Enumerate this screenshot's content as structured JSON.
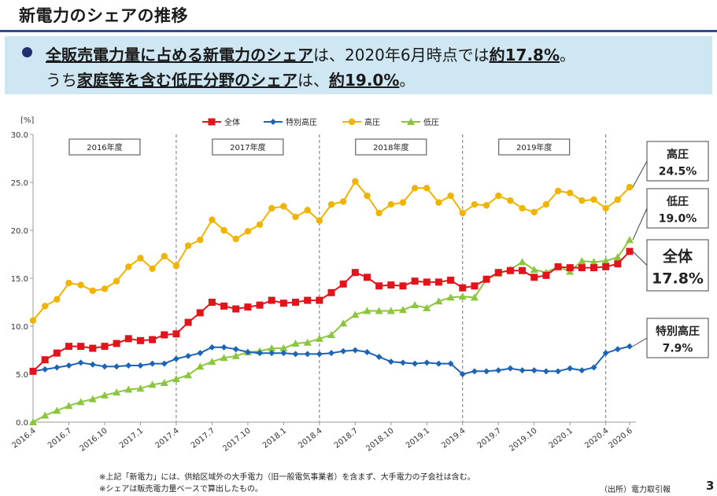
{
  "header": {
    "title": "新電力のシェアの推移"
  },
  "summary": {
    "line1": {
      "highlight": "全販売電力量に占める新電力のシェア",
      "middle": "は、2020年6月時点では",
      "value": "約17.8%",
      "end": "。"
    },
    "line2": {
      "start": "うち",
      "highlight": "家庭等を含む低圧分野のシェア",
      "middle": "は、",
      "value": "約19.0%",
      "end": "。"
    }
  },
  "chart_data": {
    "type": "line",
    "unit_label": "[%]",
    "ylim": [
      0,
      30
    ],
    "yticks": [
      "0.0",
      "5.0",
      "10.0",
      "15.0",
      "20.0",
      "25.0",
      "30.0"
    ],
    "xticks": [
      "2016.4",
      "2016.7",
      "2016.10",
      "2017.1",
      "2017.4",
      "2017.7",
      "2017.10",
      "2018.1",
      "2018.4",
      "2018.7",
      "2018.10",
      "2019.1",
      "2019.4",
      "2019.7",
      "2019.10",
      "2020.1",
      "2020.4",
      "2020.6"
    ],
    "x": [
      "2016.4",
      "2016.5",
      "2016.6",
      "2016.7",
      "2016.8",
      "2016.9",
      "2016.10",
      "2016.11",
      "2016.12",
      "2017.1",
      "2017.2",
      "2017.3",
      "2017.4",
      "2017.5",
      "2017.6",
      "2017.7",
      "2017.8",
      "2017.9",
      "2017.10",
      "2017.11",
      "2017.12",
      "2018.1",
      "2018.2",
      "2018.3",
      "2018.4",
      "2018.5",
      "2018.6",
      "2018.7",
      "2018.8",
      "2018.9",
      "2018.10",
      "2018.11",
      "2018.12",
      "2019.1",
      "2019.2",
      "2019.3",
      "2019.4",
      "2019.5",
      "2019.6",
      "2019.7",
      "2019.8",
      "2019.9",
      "2019.10",
      "2019.11",
      "2019.12",
      "2020.1",
      "2020.2",
      "2020.3",
      "2020.4",
      "2020.5",
      "2020.6"
    ],
    "fiscal_years": [
      "2016年度",
      "2017年度",
      "2018年度",
      "2019年度"
    ],
    "grid": "vertical dashed lines at fiscal-year boundaries",
    "legend_position": "top",
    "series": [
      {
        "name": "全体",
        "color": "#e3131b",
        "marker": "square",
        "values": [
          5.3,
          6.5,
          7.2,
          7.9,
          7.9,
          7.7,
          7.9,
          8.2,
          8.7,
          8.5,
          8.6,
          9.1,
          9.2,
          10.4,
          11.4,
          12.5,
          12.1,
          11.8,
          12.0,
          12.2,
          12.7,
          12.4,
          12.5,
          12.7,
          12.7,
          13.5,
          14.4,
          15.6,
          15.1,
          14.2,
          14.3,
          14.2,
          14.7,
          14.6,
          14.6,
          14.8,
          14.0,
          14.2,
          14.9,
          15.6,
          15.8,
          15.8,
          15.1,
          15.3,
          16.2,
          16.1,
          16.1,
          16.1,
          16.2,
          16.5,
          17.8
        ]
      },
      {
        "name": "特別高圧",
        "color": "#1e64b4",
        "marker": "diamond",
        "values": [
          5.3,
          5.5,
          5.7,
          5.9,
          6.2,
          6.0,
          5.8,
          5.8,
          5.9,
          5.9,
          6.1,
          6.1,
          6.6,
          6.9,
          7.2,
          7.8,
          7.8,
          7.6,
          7.3,
          7.2,
          7.2,
          7.2,
          7.1,
          7.1,
          7.1,
          7.2,
          7.4,
          7.5,
          7.3,
          6.8,
          6.3,
          6.2,
          6.1,
          6.2,
          6.1,
          6.1,
          5.0,
          5.3,
          5.3,
          5.4,
          5.6,
          5.4,
          5.4,
          5.3,
          5.3,
          5.6,
          5.4,
          5.7,
          7.2,
          7.6,
          7.9
        ]
      },
      {
        "name": "高圧",
        "color": "#f0b400",
        "marker": "circle",
        "values": [
          10.6,
          12.1,
          12.8,
          14.5,
          14.3,
          13.7,
          13.9,
          14.7,
          16.2,
          17.1,
          16.0,
          17.3,
          16.3,
          18.4,
          19.0,
          21.1,
          20.0,
          19.1,
          19.9,
          20.6,
          22.3,
          22.5,
          21.4,
          22.1,
          21.0,
          22.7,
          23.0,
          25.1,
          23.6,
          21.8,
          22.7,
          22.9,
          24.4,
          24.4,
          22.9,
          23.6,
          21.8,
          22.7,
          22.6,
          23.6,
          23.1,
          22.3,
          21.9,
          22.7,
          24.1,
          23.9,
          23.1,
          23.2,
          22.3,
          23.2,
          24.5
        ]
      },
      {
        "name": "低圧",
        "color": "#8cc63f",
        "marker": "triangle",
        "values": [
          0.0,
          0.7,
          1.2,
          1.7,
          2.1,
          2.4,
          2.8,
          3.1,
          3.4,
          3.5,
          3.9,
          4.1,
          4.5,
          4.9,
          5.8,
          6.3,
          6.7,
          6.9,
          7.3,
          7.4,
          7.7,
          7.7,
          8.2,
          8.3,
          8.7,
          9.1,
          10.3,
          11.2,
          11.6,
          11.6,
          11.6,
          11.7,
          12.2,
          11.9,
          12.6,
          13.0,
          13.1,
          13.0,
          14.9,
          15.5,
          15.9,
          16.7,
          15.9,
          15.6,
          16.2,
          15.7,
          16.8,
          16.7,
          16.8,
          17.2,
          19.0
        ]
      }
    ],
    "callouts": [
      {
        "label": "高圧",
        "value": "24.5%"
      },
      {
        "label": "低圧",
        "value": "19.0%"
      },
      {
        "label": "全体",
        "value": "17.8%"
      },
      {
        "label": "特別高圧",
        "value": "7.9%"
      }
    ]
  },
  "footnotes": {
    "note1": "※上記「新電力」には、供給区域外の大手電力（旧一般電気事業者）を含まず、大手電力の子会社は含む。",
    "note2": "※シェアは販売電力量ベースで算出したもの。",
    "source": "（出所）電力取引報",
    "page": "3"
  }
}
